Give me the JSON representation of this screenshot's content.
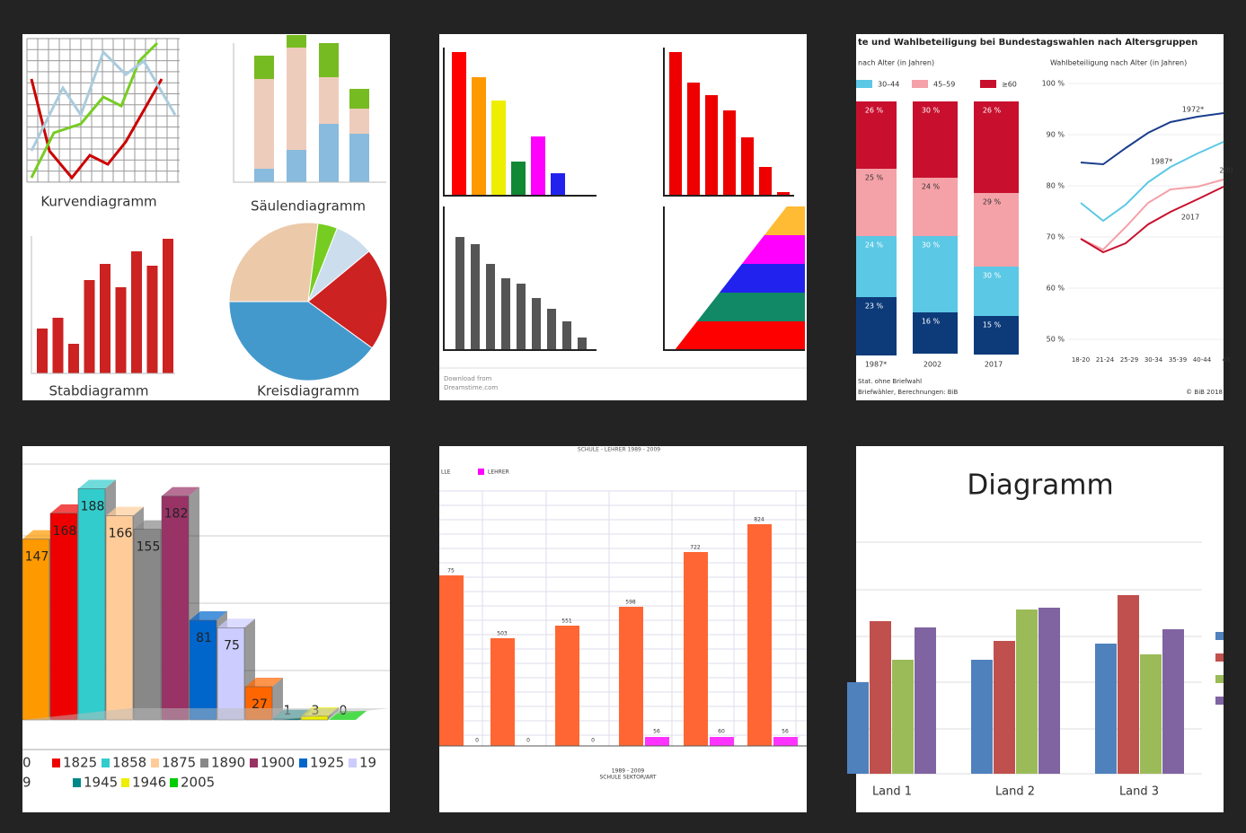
{
  "tiles": [
    {
      "captions": [
        "Kurvendiagramm",
        "Säulendiagramm",
        "Stabdiagramm",
        "Kreisdiagramm"
      ]
    },
    {
      "footer": [
        "Download from",
        "Dreamstime.com"
      ]
    },
    {
      "title": "te und Wahlbeteiligung bei Bundestagswahlen nach Altersgruppen",
      "left_subtitle": "nach Alter (in Jahren)",
      "right_subtitle": "Wahlbeteiligung nach Alter (in Jahren)",
      "legend": [
        "30–44",
        "45–59",
        "≥60"
      ],
      "bar_labels": [
        [
          "26 %",
          "25 %",
          "24 %",
          "23 %"
        ],
        [
          "30 %",
          "24 %",
          "30 %",
          "16 %"
        ],
        [
          "26 %",
          "29 %",
          "30 %",
          "15 %"
        ]
      ],
      "years": [
        "1987*",
        "2002",
        "2017"
      ],
      "yticks": [
        "100 %",
        "90 %",
        "80 %",
        "70 %",
        "60 %",
        "50 %"
      ],
      "line_labels": [
        "1972*",
        "1987*",
        "200",
        "2017"
      ],
      "xticks": [
        "18-20",
        "21-24",
        "25-29",
        "30-34",
        "35-39",
        "40-44",
        "45"
      ],
      "footer": [
        "Stat. ohne Briefwahl",
        "Briefwähler, Berechnungen: BiB",
        "© BiB 2018"
      ]
    },
    {
      "values": [
        147,
        168,
        188,
        166,
        155,
        182,
        81,
        75,
        27,
        1,
        3,
        0
      ],
      "legend": [
        "0",
        "1825",
        "1858",
        "1875",
        "1890",
        "1900",
        "1925",
        "19",
        "9",
        "1945",
        "1946",
        "2005"
      ]
    },
    {
      "title": "SCHULE - LEHRER 1989 - 2009",
      "legend": [
        "LLE",
        "LEHRER"
      ],
      "labels": [
        "75",
        "0",
        "503",
        "0",
        "551",
        "0",
        "598",
        "56",
        "722",
        "60",
        "824",
        "56"
      ],
      "xlabel": [
        "1989 - 2009",
        "SCHULE SEKTOR/ART"
      ]
    },
    {
      "title": "Diagramm",
      "categories": [
        "Land 1",
        "Land 2",
        "Land 3"
      ]
    }
  ]
}
